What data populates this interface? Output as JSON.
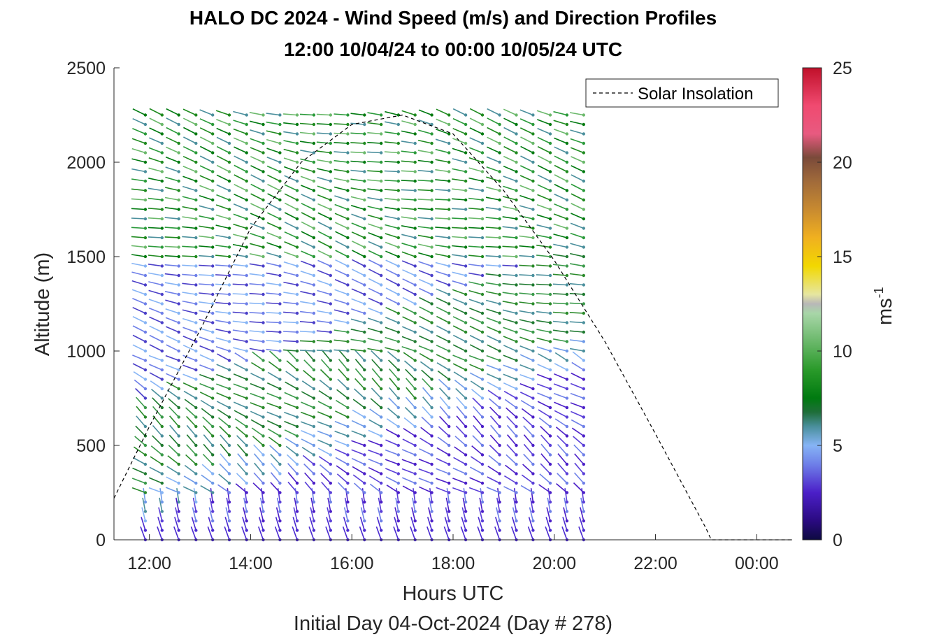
{
  "chart_data": {
    "type": "wind-barb profile",
    "title": "HALO DC 2024 - Wind Speed (m/s) and Direction Profiles",
    "subtitle": "12:00 10/04/24 to 00:00 10/05/24  UTC",
    "xlabel": "Hours UTC",
    "xlabel2": "Initial Day 04-Oct-2024 (Day # 278)",
    "ylabel": "Altitude (m)",
    "xlim": [
      11.3,
      24.7
    ],
    "ylim": [
      0,
      2500
    ],
    "x_ticks": [
      12,
      14,
      16,
      18,
      20,
      22,
      24
    ],
    "x_tick_labels": [
      "12:00",
      "14:00",
      "16:00",
      "18:00",
      "20:00",
      "22:00",
      "00:00"
    ],
    "y_ticks": [
      0,
      500,
      1000,
      1500,
      2000,
      2500
    ],
    "y_tick_labels": [
      "0",
      "500",
      "1000",
      "1500",
      "2000",
      "2500"
    ],
    "colorbar": {
      "label": "ms",
      "label_exponent": "-1",
      "range": [
        0,
        25
      ],
      "ticks": [
        0,
        5,
        10,
        15,
        20,
        25
      ],
      "tick_labels": [
        "0",
        "5",
        "10",
        "15",
        "20",
        "25"
      ]
    },
    "legend": {
      "entries": [
        "Solar Insolation"
      ],
      "placement": "top-right"
    },
    "solar_insolation": {
      "x": [
        11.3,
        12.0,
        13.0,
        14.0,
        15.0,
        16.0,
        17.0,
        18.0,
        19.0,
        20.0,
        21.0,
        22.0,
        23.0,
        23.1,
        24.7
      ],
      "y": [
        220,
        600,
        1110,
        1650,
        2000,
        2200,
        2250,
        2150,
        1850,
        1480,
        1050,
        560,
        60,
        0,
        0
      ]
    },
    "wind_profiles": {
      "times": [
        11.92,
        12.25,
        12.58,
        12.92,
        13.25,
        13.58,
        13.92,
        14.25,
        14.58,
        14.92,
        15.25,
        15.58,
        15.92,
        16.25,
        16.58,
        16.92,
        17.25,
        17.58,
        17.92,
        18.25,
        18.58,
        18.92,
        19.25,
        19.58,
        19.92,
        20.25,
        20.58
      ],
      "altitude_step": 50,
      "max_altitude": 2250
    }
  }
}
